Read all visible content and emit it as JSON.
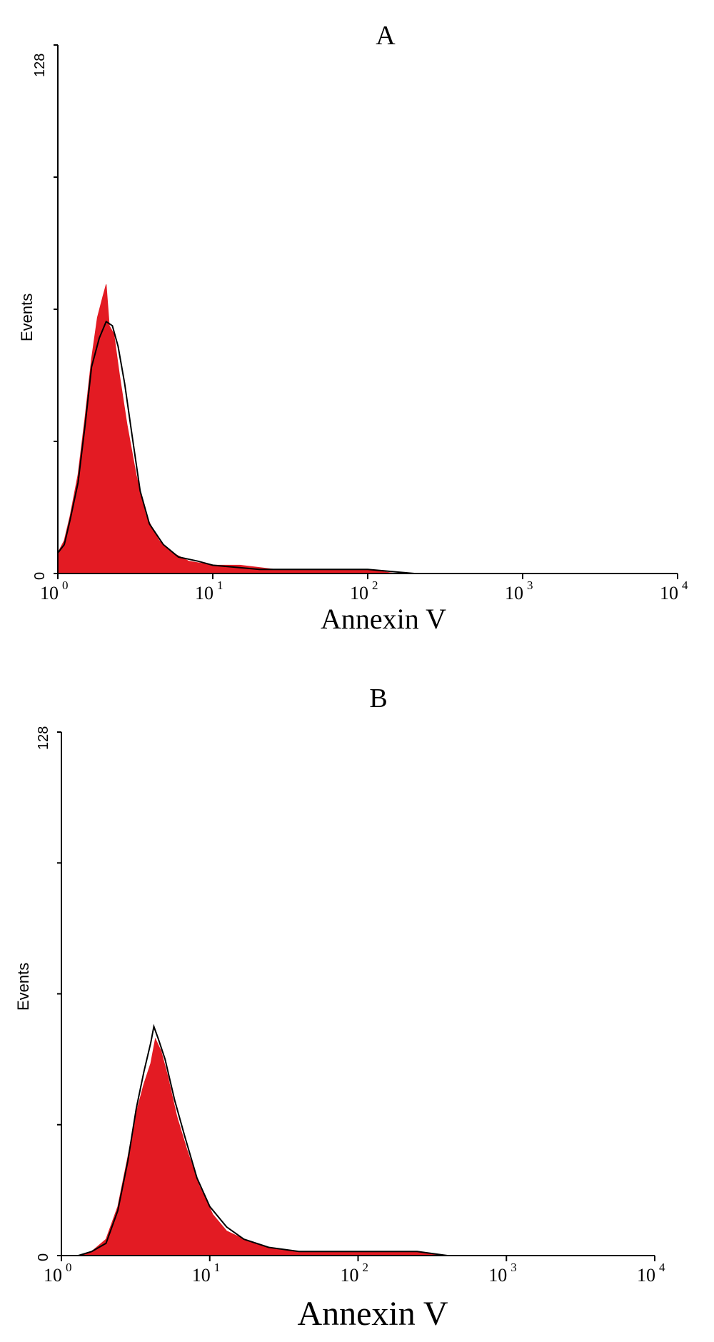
{
  "colors": {
    "fill": "#e31b23",
    "outline": "#000000",
    "background": "#ffffff"
  },
  "chart_data": [
    {
      "type": "area",
      "title": "A",
      "xlabel": "Annexin V",
      "ylabel": "Events",
      "x_scale": "log",
      "xlim": [
        1,
        10000
      ],
      "ylim": [
        0,
        128
      ],
      "grid": false,
      "y_tick_labels": [
        "0",
        "128"
      ],
      "x_tick_labels": [
        {
          "base": "10",
          "exp": "0"
        },
        {
          "base": "10",
          "exp": "1"
        },
        {
          "base": "10",
          "exp": "2"
        },
        {
          "base": "10",
          "exp": "3"
        },
        {
          "base": "10",
          "exp": "4"
        }
      ],
      "series": [
        {
          "style": "filled",
          "points": [
            [
              1.0,
              5
            ],
            [
              1.1,
              8
            ],
            [
              1.2,
              14
            ],
            [
              1.35,
              24
            ],
            [
              1.5,
              38
            ],
            [
              1.65,
              52
            ],
            [
              1.8,
              62
            ],
            [
              1.95,
              67
            ],
            [
              2.05,
              70
            ],
            [
              2.15,
              60
            ],
            [
              2.3,
              58
            ],
            [
              2.5,
              48
            ],
            [
              2.8,
              36
            ],
            [
              3.2,
              24
            ],
            [
              3.7,
              14
            ],
            [
              4.5,
              8
            ],
            [
              5.5,
              5
            ],
            [
              7,
              3
            ],
            [
              10,
              2
            ],
            [
              15,
              2
            ],
            [
              25,
              1
            ],
            [
              50,
              1
            ],
            [
              80,
              1
            ],
            [
              100,
              1
            ],
            [
              150,
              0
            ]
          ]
        },
        {
          "style": "outline",
          "points": [
            [
              1.0,
              5
            ],
            [
              1.1,
              7
            ],
            [
              1.2,
              13
            ],
            [
              1.35,
              22
            ],
            [
              1.5,
              36
            ],
            [
              1.65,
              50
            ],
            [
              1.85,
              57
            ],
            [
              2.05,
              61
            ],
            [
              2.25,
              60
            ],
            [
              2.45,
              55
            ],
            [
              2.7,
              46
            ],
            [
              3.0,
              34
            ],
            [
              3.4,
              20
            ],
            [
              3.9,
              12
            ],
            [
              4.8,
              7
            ],
            [
              6,
              4
            ],
            [
              8,
              3
            ],
            [
              10,
              2
            ],
            [
              20,
              1
            ],
            [
              50,
              1
            ],
            [
              100,
              1
            ],
            [
              200,
              0
            ]
          ]
        }
      ]
    },
    {
      "type": "area",
      "title": "B",
      "xlabel": "Annexin V",
      "ylabel": "Events",
      "x_scale": "log",
      "xlim": [
        1,
        10000
      ],
      "ylim": [
        0,
        128
      ],
      "grid": false,
      "y_tick_labels": [
        "0",
        "128"
      ],
      "x_tick_labels": [
        {
          "base": "10",
          "exp": "0"
        },
        {
          "base": "10",
          "exp": "1"
        },
        {
          "base": "10",
          "exp": "2"
        },
        {
          "base": "10",
          "exp": "3"
        },
        {
          "base": "10",
          "exp": "4"
        }
      ],
      "series": [
        {
          "style": "filled",
          "points": [
            [
              1.3,
              0
            ],
            [
              1.6,
              1
            ],
            [
              2.0,
              4
            ],
            [
              2.4,
              12
            ],
            [
              2.8,
              24
            ],
            [
              3.2,
              35
            ],
            [
              3.6,
              42
            ],
            [
              4.0,
              47
            ],
            [
              4.3,
              53
            ],
            [
              4.7,
              50
            ],
            [
              5.2,
              44
            ],
            [
              6.0,
              34
            ],
            [
              7.0,
              26
            ],
            [
              8.5,
              17
            ],
            [
              10.5,
              10
            ],
            [
              13,
              6
            ],
            [
              17,
              4
            ],
            [
              25,
              2
            ],
            [
              40,
              1
            ],
            [
              100,
              1
            ],
            [
              250,
              1
            ],
            [
              400,
              0
            ]
          ]
        },
        {
          "style": "outline",
          "points": [
            [
              1.3,
              0
            ],
            [
              1.6,
              1
            ],
            [
              2.0,
              3
            ],
            [
              2.4,
              11
            ],
            [
              2.8,
              23
            ],
            [
              3.2,
              36
            ],
            [
              3.6,
              45
            ],
            [
              4.0,
              52
            ],
            [
              4.2,
              56
            ],
            [
              4.5,
              53
            ],
            [
              5.0,
              48
            ],
            [
              5.8,
              38
            ],
            [
              6.8,
              29
            ],
            [
              8.2,
              19
            ],
            [
              10,
              12
            ],
            [
              13,
              7
            ],
            [
              17,
              4
            ],
            [
              25,
              2
            ],
            [
              40,
              1
            ],
            [
              100,
              1
            ],
            [
              250,
              1
            ],
            [
              400,
              0
            ]
          ]
        }
      ]
    }
  ]
}
